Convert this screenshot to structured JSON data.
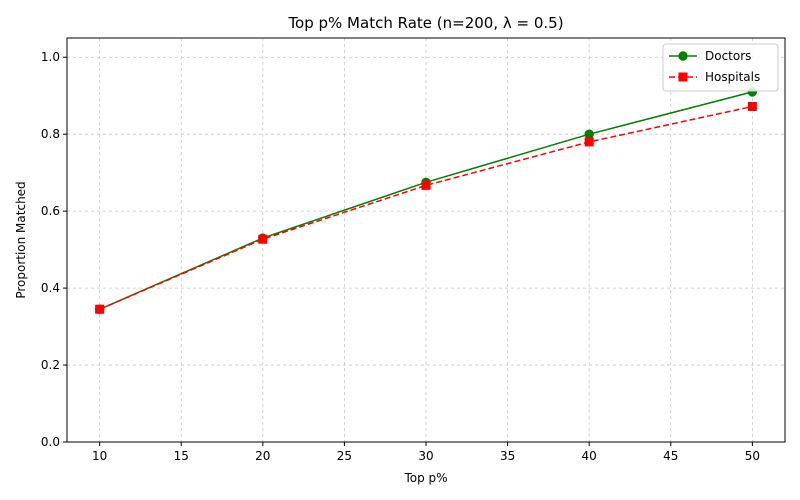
{
  "chart_data": {
    "type": "line",
    "title": "Top p% Match Rate (n=200, λ = 0.5)",
    "xlabel": "Top p%",
    "ylabel": "Proportion Matched",
    "x": [
      10,
      20,
      30,
      40,
      50
    ],
    "xlim": [
      8,
      52
    ],
    "ylim": [
      0,
      1.05
    ],
    "xticks": [
      10,
      15,
      20,
      25,
      30,
      35,
      40,
      45,
      50
    ],
    "yticks": [
      0.0,
      0.2,
      0.4,
      0.6,
      0.8,
      1.0
    ],
    "ytick_labels": [
      "0.0",
      "0.2",
      "0.4",
      "0.6",
      "0.8",
      "1.0"
    ],
    "grid": true,
    "legend_position": "top-right",
    "series": [
      {
        "name": "Doctors",
        "values": [
          0.345,
          0.53,
          0.675,
          0.8,
          0.91
        ],
        "color": "#008000",
        "marker": "circle",
        "linestyle": "solid"
      },
      {
        "name": "Hospitals",
        "values": [
          0.345,
          0.527,
          0.667,
          0.78,
          0.872
        ],
        "color": "#ff0000",
        "marker": "square",
        "linestyle": "dashed"
      }
    ]
  }
}
